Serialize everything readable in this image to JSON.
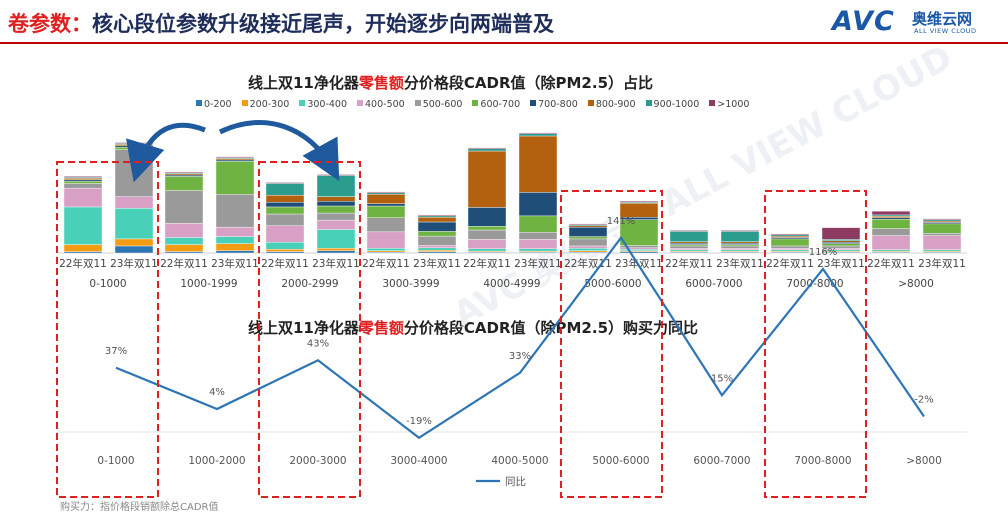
{
  "page": {
    "title_prefix": "卷参数：",
    "title_rest": "核心段位参数升级接近尾声，开始逐步向两端普及",
    "logo": {
      "mark": "AVC",
      "cn": "奥维云网",
      "en": "ALL VIEW CLOUD"
    },
    "footnote": "购买力：指价格段销额除总CADR值",
    "watermark": "AVC 奥维云网 ALL VIEW CLOUD"
  },
  "colors": {
    "title_blue": "#1f2d5a",
    "accent_red": "#e02020",
    "line_blue": "#2e75b6",
    "highlight_box": "#e02020",
    "arrow_blue": "#1f5a9e"
  },
  "chart_data": [
    {
      "type": "bar",
      "stacked": true,
      "title_parts": [
        "线上双11净化器",
        "零售额",
        "分价格段CADR值（除PM2.5）占比"
      ],
      "legend_position": "top",
      "groups": [
        "0-1000",
        "1000-1999",
        "2000-2999",
        "3000-3999",
        "4000-4999",
        "5000-6000",
        "6000-7000",
        "7000-8000",
        ">8000"
      ],
      "bar_labels": [
        "22年双11",
        "23年双11"
      ],
      "series": [
        {
          "name": "0-200",
          "color": "#2e75b6",
          "values": [
            [
              0.3,
              1.5
            ],
            [
              0.3,
              0.5
            ],
            [
              0.3,
              0.5
            ],
            [
              0.2,
              0.3
            ],
            [
              0.2,
              0.2
            ],
            [
              0.2,
              0.3
            ],
            [
              0.2,
              0.2
            ],
            [
              0.2,
              0.2
            ],
            [
              0.2,
              0.2
            ]
          ]
        },
        {
          "name": "200-300",
          "color": "#f39c12",
          "values": [
            [
              1.5,
              1.5
            ],
            [
              1.5,
              1.5
            ],
            [
              0.5,
              0.5
            ],
            [
              0.3,
              0.3
            ],
            [
              0.2,
              0.2
            ],
            [
              0.3,
              0.2
            ],
            [
              0.2,
              0.2
            ],
            [
              0.2,
              0.2
            ],
            [
              0.2,
              0.2
            ]
          ]
        },
        {
          "name": "300-400",
          "color": "#48d1b8",
          "values": [
            [
              8,
              6.5
            ],
            [
              1.5,
              1.5
            ],
            [
              1.5,
              4
            ],
            [
              0.5,
              0.5
            ],
            [
              0.5,
              0.5
            ],
            [
              0.5,
              0.3
            ],
            [
              0.3,
              0.3
            ],
            [
              0.3,
              0.3
            ],
            [
              0.3,
              0.3
            ]
          ]
        },
        {
          "name": "400-500",
          "color": "#d7a0c4",
          "values": [
            [
              4,
              2.5
            ],
            [
              3,
              2
            ],
            [
              3.5,
              2
            ],
            [
              3.5,
              0.5
            ],
            [
              2,
              2
            ],
            [
              0.5,
              0.3
            ],
            [
              0.3,
              0.3
            ],
            [
              0.3,
              0.3
            ],
            [
              3,
              3
            ]
          ]
        },
        {
          "name": "500-600",
          "color": "#9a9a9a",
          "values": [
            [
              1,
              10
            ],
            [
              7,
              7
            ],
            [
              2.5,
              1.5
            ],
            [
              3,
              2
            ],
            [
              2,
              1.5
            ],
            [
              1.5,
              0.5
            ],
            [
              0.5,
              0.5
            ],
            [
              0.5,
              0.5
            ],
            [
              1.5,
              0.5
            ]
          ]
        },
        {
          "name": "600-700",
          "color": "#6fb342",
          "values": [
            [
              0.5,
              0.5
            ],
            [
              3,
              7
            ],
            [
              1.5,
              1.5
            ],
            [
              2.5,
              1
            ],
            [
              0.8,
              3.5
            ],
            [
              0.5,
              5.5
            ],
            [
              0.3,
              0.3
            ],
            [
              1.5,
              0.5
            ],
            [
              2,
              2
            ]
          ]
        },
        {
          "name": "700-800",
          "color": "#1f4e79",
          "values": [
            [
              0.3,
              0.3
            ],
            [
              0.3,
              0.3
            ],
            [
              1,
              1
            ],
            [
              0.5,
              2
            ],
            [
              4,
              5
            ],
            [
              2,
              0.5
            ],
            [
              0.3,
              0.3
            ],
            [
              0.3,
              0.3
            ],
            [
              0.3,
              0.3
            ]
          ]
        },
        {
          "name": "800-900",
          "color": "#b3610e",
          "values": [
            [
              0.3,
              0.3
            ],
            [
              0.3,
              0.3
            ],
            [
              1.5,
              1
            ],
            [
              2,
              1
            ],
            [
              12,
              12
            ],
            [
              0.3,
              3
            ],
            [
              0.3,
              0.3
            ],
            [
              0.3,
              0.3
            ],
            [
              0.3,
              0.3
            ]
          ]
        },
        {
          "name": "900-1000",
          "color": "#2a9d8f",
          "values": [
            [
              0.2,
              0.2
            ],
            [
              0.2,
              0.2
            ],
            [
              2.5,
              4.5
            ],
            [
              0.3,
              0.3
            ],
            [
              0.5,
              0.5
            ],
            [
              0.2,
              0.2
            ],
            [
              2.2,
              2.2
            ],
            [
              0.3,
              0.3
            ],
            [
              0.3,
              0.3
            ]
          ]
        },
        {
          "name": ">1000",
          "color": "#8e3b62",
          "values": [
            [
              0.2,
              0.2
            ],
            [
              0.2,
              0.2
            ],
            [
              0.2,
              0.2
            ],
            [
              0.2,
              0.2
            ],
            [
              0.2,
              0.2
            ],
            [
              0.2,
              0.2
            ],
            [
              0.2,
              0.2
            ],
            [
              0.2,
              2.5
            ],
            [
              0.8,
              0.2
            ]
          ]
        }
      ],
      "highlighted_groups": [
        "0-1000",
        "2000-2999",
        "5000-6000",
        "7000-8000"
      ]
    },
    {
      "type": "line",
      "title_parts": [
        "线上双11净化器",
        "零售额",
        "分价格段CADR值（除PM2.5）购买力同比"
      ],
      "categories": [
        "0-1000",
        "1000-2000",
        "2000-3000",
        "3000-4000",
        "4000-5000",
        "5000-6000",
        "6000-7000",
        "7000-8000",
        ">8000"
      ],
      "series": [
        {
          "name": "同比",
          "values": [
            37,
            4,
            43,
            -19,
            33,
            141,
            15,
            116,
            -2
          ]
        }
      ],
      "data_labels": [
        "37%",
        "4%",
        "43%",
        "-19%",
        "33%",
        "141%",
        "15%",
        "116%",
        "-2%"
      ],
      "legend_position": "bottom",
      "highlighted_categories": [
        "0-1000",
        "2000-3000",
        "5000-6000",
        "7000-8000"
      ]
    }
  ]
}
